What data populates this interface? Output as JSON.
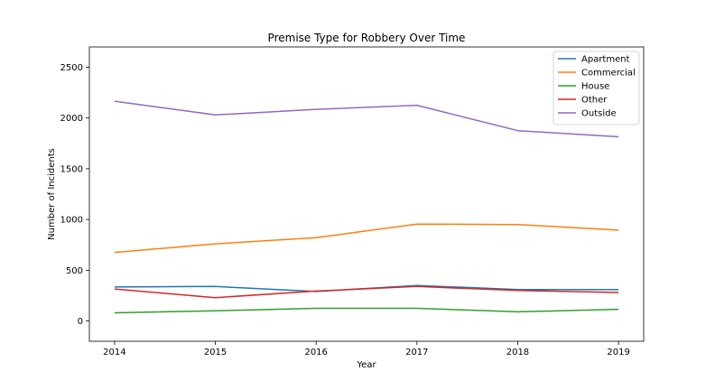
{
  "chart_data": {
    "type": "line",
    "title": "Premise Type for Robbery Over Time",
    "xlabel": "Year",
    "ylabel": "Number of Incidents",
    "x": [
      2014,
      2015,
      2016,
      2017,
      2018,
      2019
    ],
    "xlim": [
      2013.75,
      2019.25
    ],
    "ylim": [
      -200,
      2700
    ],
    "yticks": [
      0,
      500,
      1000,
      1500,
      2000,
      2500
    ],
    "grid": false,
    "legend_position": "top-right",
    "series": [
      {
        "name": "Apartment",
        "color": "#1f77b4",
        "values": [
          335,
          340,
          290,
          350,
          310,
          310
        ]
      },
      {
        "name": "Commercial",
        "color": "#ff7f0e",
        "values": [
          675,
          760,
          820,
          955,
          950,
          895
        ]
      },
      {
        "name": "House",
        "color": "#2ca02c",
        "values": [
          80,
          100,
          125,
          125,
          90,
          115
        ]
      },
      {
        "name": "Other",
        "color": "#d62728",
        "values": [
          315,
          230,
          295,
          340,
          300,
          280
        ]
      },
      {
        "name": "Outside",
        "color": "#9467bd",
        "values": [
          2165,
          2030,
          2085,
          2125,
          1875,
          1815
        ]
      }
    ]
  }
}
